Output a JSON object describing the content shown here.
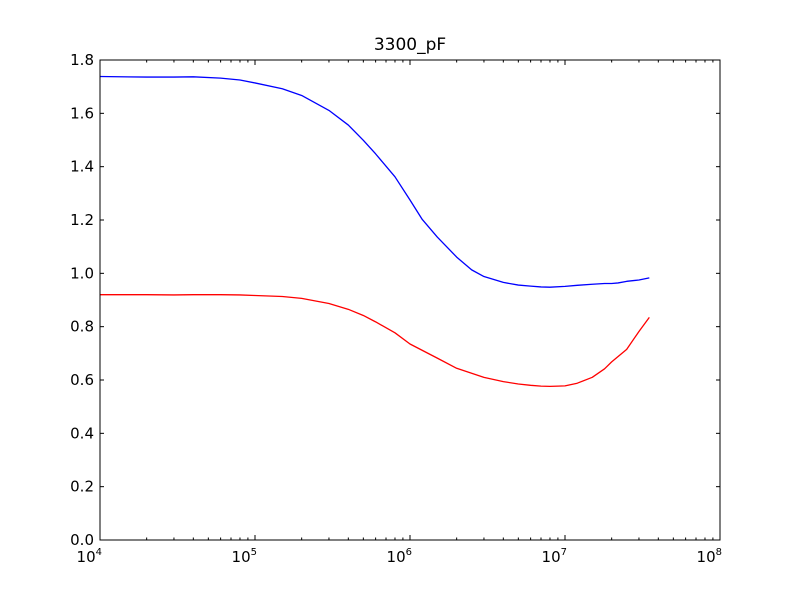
{
  "chart_data": {
    "type": "line",
    "title": "3300_pF",
    "xlabel": "",
    "ylabel": "",
    "x_scale": "log",
    "xlim": [
      10000,
      100000000
    ],
    "ylim": [
      0.0,
      1.8
    ],
    "x_ticks": [
      {
        "base": "10",
        "exp": "4",
        "value": 10000
      },
      {
        "base": "10",
        "exp": "5",
        "value": 100000
      },
      {
        "base": "10",
        "exp": "6",
        "value": 1000000
      },
      {
        "base": "10",
        "exp": "7",
        "value": 10000000
      },
      {
        "base": "10",
        "exp": "8",
        "value": 100000000
      }
    ],
    "y_ticks": [
      "0.0",
      "0.2",
      "0.4",
      "0.6",
      "0.8",
      "1.0",
      "1.2",
      "1.4",
      "1.6",
      "1.8"
    ],
    "grid": false,
    "series": [
      {
        "color": "#0000ff",
        "x": [
          10000,
          20000,
          30000,
          40000,
          60000,
          80000,
          100000,
          150000,
          200000,
          300000,
          400000,
          500000,
          600000,
          800000,
          1000000,
          1200000,
          1500000,
          2000000,
          2500000,
          3000000,
          4000000,
          5000000,
          6000000,
          7000000,
          8000000,
          10000000,
          12000000,
          15000000,
          18000000,
          20000000,
          22000000,
          25000000,
          30000000,
          35000000
        ],
        "y": [
          1.738,
          1.736,
          1.736,
          1.737,
          1.732,
          1.725,
          1.714,
          1.692,
          1.667,
          1.611,
          1.556,
          1.499,
          1.448,
          1.362,
          1.275,
          1.202,
          1.136,
          1.061,
          1.013,
          0.988,
          0.966,
          0.956,
          0.952,
          0.949,
          0.948,
          0.951,
          0.955,
          0.959,
          0.962,
          0.962,
          0.964,
          0.97,
          0.975,
          0.983
        ]
      },
      {
        "color": "#ff0000",
        "x": [
          10000,
          20000,
          30000,
          40000,
          60000,
          80000,
          100000,
          150000,
          200000,
          300000,
          400000,
          500000,
          600000,
          800000,
          1000000,
          1500000,
          2000000,
          3000000,
          4000000,
          5000000,
          6000000,
          7000000,
          8000000,
          9000000,
          10000000,
          12000000,
          15000000,
          18000000,
          20000000,
          25000000,
          30000000,
          35000000
        ],
        "y": [
          0.92,
          0.92,
          0.919,
          0.92,
          0.92,
          0.919,
          0.917,
          0.913,
          0.906,
          0.887,
          0.865,
          0.842,
          0.818,
          0.777,
          0.735,
          0.682,
          0.644,
          0.61,
          0.594,
          0.585,
          0.58,
          0.577,
          0.576,
          0.577,
          0.578,
          0.588,
          0.61,
          0.642,
          0.668,
          0.715,
          0.782,
          0.835
        ]
      }
    ]
  }
}
